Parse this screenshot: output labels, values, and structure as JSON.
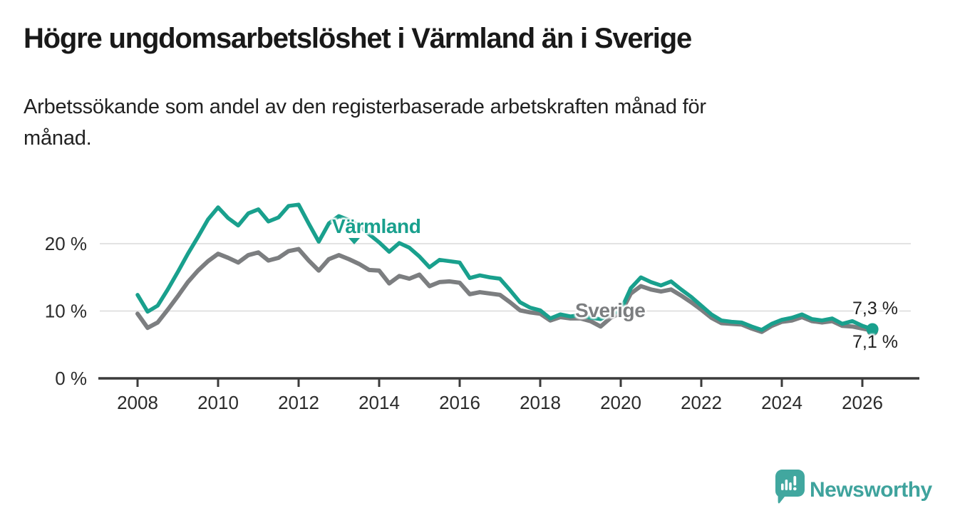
{
  "chart_data": {
    "type": "line",
    "title": "Högre ungdomsarbetslöshet i Värmland än i Sverige",
    "subtitle": "Arbetssökande som andel av den registerbaserade arbetskraften månad för månad.",
    "ylabel": "%",
    "xlabel": "",
    "ylim": [
      0,
      27
    ],
    "xlim": [
      2007.5,
      2026.9
    ],
    "grid": "horizontal-light",
    "x_start": 2008,
    "x_step": 0.25,
    "x_ticks": [
      2008,
      2010,
      2012,
      2014,
      2016,
      2018,
      2020,
      2022,
      2024,
      2026
    ],
    "y_ticks": [
      {
        "value": 0,
        "label": "0 %"
      },
      {
        "value": 10,
        "label": "10 %"
      },
      {
        "value": 20,
        "label": "20 %"
      }
    ],
    "series": [
      {
        "name": "Sverige",
        "color": "#7C7E80",
        "end_label": "7,1 %",
        "end_marker": "dot",
        "values": [
          9.6,
          7.5,
          8.3,
          10.2,
          12.2,
          14.3,
          16.0,
          17.4,
          18.5,
          17.9,
          17.2,
          18.3,
          18.7,
          17.5,
          17.9,
          18.9,
          19.2,
          17.5,
          16.0,
          17.7,
          18.3,
          17.7,
          17.0,
          16.1,
          16.0,
          14.1,
          15.2,
          14.8,
          15.4,
          13.7,
          14.3,
          14.4,
          14.2,
          12.5,
          12.8,
          12.6,
          12.4,
          11.3,
          10.1,
          9.8,
          9.6,
          8.6,
          9.1,
          8.9,
          8.9,
          8.5,
          7.7,
          9.0,
          9.7,
          12.6,
          13.7,
          13.2,
          12.9,
          13.2,
          12.3,
          11.3,
          10.2,
          9.0,
          8.2,
          8.1,
          8.0,
          7.4,
          6.9,
          7.8,
          8.4,
          8.6,
          9.1,
          8.5,
          8.3,
          8.5,
          7.8,
          7.7,
          7.4,
          7.1
        ]
      },
      {
        "name": "Värmland",
        "color": "#19A08D",
        "end_label": "7,3 %",
        "end_marker": "dot",
        "values": [
          12.4,
          9.9,
          10.8,
          13.2,
          15.8,
          18.5,
          21.0,
          23.6,
          25.4,
          23.8,
          22.7,
          24.5,
          25.1,
          23.3,
          23.9,
          25.6,
          25.8,
          23.0,
          20.3,
          23.0,
          24.1,
          23.5,
          22.7,
          21.4,
          20.2,
          18.8,
          20.1,
          19.4,
          18.1,
          16.5,
          17.6,
          17.4,
          17.2,
          14.9,
          15.3,
          15.0,
          14.8,
          13.1,
          11.3,
          10.5,
          10.1,
          8.9,
          9.5,
          9.2,
          9.4,
          9.0,
          8.8,
          9.6,
          10.1,
          13.4,
          15.0,
          14.3,
          13.8,
          14.4,
          13.2,
          12.1,
          10.8,
          9.5,
          8.6,
          8.4,
          8.3,
          7.7,
          7.2,
          8.1,
          8.7,
          9.0,
          9.5,
          8.8,
          8.6,
          8.9,
          8.1,
          8.5,
          7.8,
          7.3
        ]
      }
    ],
    "colors": {
      "grid": "#DADADA",
      "axis": "#3B3B3B",
      "tick_text": "#2B2B2B"
    }
  },
  "footer": {
    "brand": "Newsworthy",
    "logo_icon": "newsworthy-speech-bubble-bar-chart-icon",
    "brand_color": "#3FA39D"
  }
}
